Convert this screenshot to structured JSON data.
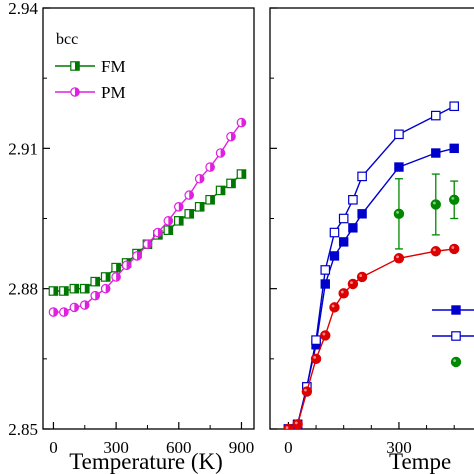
{
  "chart_data": [
    {
      "panel": "left",
      "type": "line",
      "panel_label": "bcc",
      "xlabel": "Temperature (K)",
      "ylabel": "",
      "xlim": [
        -50,
        960
      ],
      "ylim": [
        2.85,
        2.94
      ],
      "xticks": [
        0,
        300,
        600,
        900
      ],
      "yticks": [
        2.85,
        2.88,
        2.91,
        2.94
      ],
      "ytick_labels_visible": [
        "2.85",
        "2.88",
        "2.91",
        "2.94"
      ],
      "legend_position": "top-left",
      "grid": false,
      "series": [
        {
          "name": "FM",
          "color": "#007700",
          "marker": "half-filled-square",
          "x": [
            0,
            50,
            100,
            150,
            200,
            250,
            300,
            350,
            400,
            450,
            500,
            550,
            600,
            650,
            700,
            750,
            800,
            850,
            900
          ],
          "y": [
            2.8795,
            2.8795,
            2.88,
            2.88,
            2.8815,
            2.8825,
            2.8845,
            2.8855,
            2.8875,
            2.8895,
            2.8915,
            2.8925,
            2.8945,
            2.896,
            2.8975,
            2.899,
            2.901,
            2.9025,
            2.9045
          ]
        },
        {
          "name": "PM",
          "color": "#e020e0",
          "marker": "half-filled-circle",
          "x": [
            0,
            50,
            100,
            150,
            200,
            250,
            300,
            350,
            400,
            450,
            500,
            550,
            600,
            650,
            700,
            750,
            800,
            850,
            900
          ],
          "y": [
            2.875,
            2.875,
            2.876,
            2.8765,
            2.8785,
            2.88,
            2.8825,
            2.885,
            2.887,
            2.8895,
            2.892,
            2.8945,
            2.8975,
            2.9,
            2.9035,
            2.906,
            2.909,
            2.9125,
            2.9155
          ]
        }
      ]
    },
    {
      "panel": "right",
      "type": "line",
      "xlabel": "Tempe",
      "ylabel": "",
      "xlim": [
        -50,
        520
      ],
      "ylim": [
        2.85,
        2.94
      ],
      "xticks": [
        0,
        300
      ],
      "legend_position": "bottom-right",
      "grid": false,
      "series": [
        {
          "color": "#0000cc",
          "marker": "filled-square",
          "x": [
            0,
            25,
            50,
            75,
            100,
            125,
            150,
            175,
            200,
            300,
            400,
            450
          ],
          "y": [
            2.85,
            2.851,
            2.859,
            2.868,
            2.881,
            2.887,
            2.89,
            2.893,
            2.896,
            2.906,
            2.909,
            2.91
          ]
        },
        {
          "color": "#0000cc",
          "marker": "open-square",
          "x": [
            0,
            25,
            50,
            75,
            100,
            125,
            150,
            175,
            200,
            300,
            400,
            450
          ],
          "y": [
            2.85,
            2.851,
            2.859,
            2.869,
            2.884,
            2.892,
            2.895,
            2.899,
            2.904,
            2.913,
            2.917,
            2.919
          ]
        },
        {
          "color": "#dd0000",
          "marker": "filled-circle",
          "x": [
            0,
            25,
            50,
            75,
            100,
            125,
            150,
            175,
            200,
            300,
            400,
            450
          ],
          "y": [
            2.85,
            2.851,
            2.858,
            2.865,
            2.87,
            2.876,
            2.879,
            2.881,
            2.8825,
            2.8865,
            2.888,
            2.8885
          ]
        },
        {
          "color": "#008800",
          "marker": "filled-circle-with-error-bars",
          "x": [
            300,
            400,
            450
          ],
          "y": [
            2.896,
            2.898,
            2.899
          ],
          "yerr": [
            0.0075,
            0.0065,
            0.004
          ]
        }
      ]
    }
  ]
}
